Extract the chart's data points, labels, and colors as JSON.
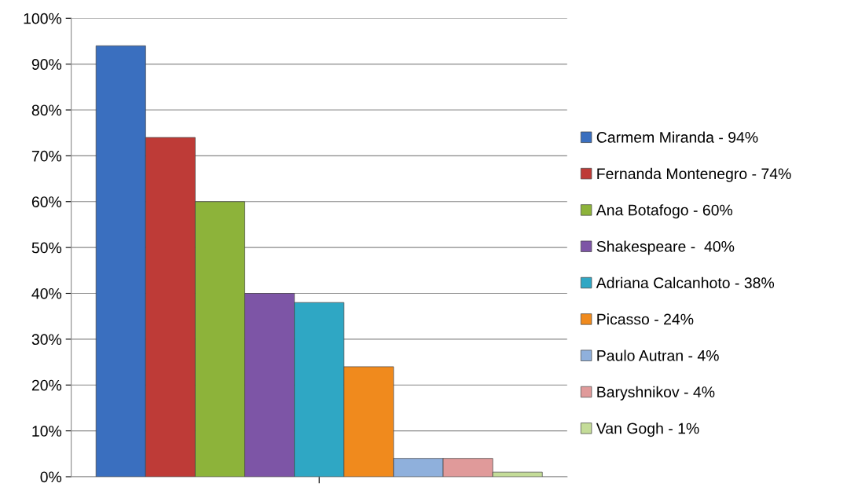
{
  "chart_data": {
    "type": "bar",
    "categories": [
      null
    ],
    "series": [
      {
        "name": "Carmem Miranda - 94%",
        "color": "#3a6fbf",
        "values": [
          94
        ]
      },
      {
        "name": "Fernanda Montenegro - 74%",
        "color": "#be3b37",
        "values": [
          74
        ]
      },
      {
        "name": "Ana Botafogo - 60%",
        "color": "#8db33a",
        "values": [
          60
        ]
      },
      {
        "name": "Shakespeare -  40%",
        "color": "#7d55a6",
        "values": [
          40
        ]
      },
      {
        "name": "Adriana Calcanhoto - 38%",
        "color": "#2fa7c4",
        "values": [
          38
        ]
      },
      {
        "name": "Picasso - 24%",
        "color": "#f08a1d",
        "values": [
          24
        ]
      },
      {
        "name": "Paulo Autran - 4%",
        "color": "#8fb0dc",
        "values": [
          4
        ]
      },
      {
        "name": "Baryshnikov - 4%",
        "color": "#e09a9a",
        "values": [
          4
        ]
      },
      {
        "name": "Van Gogh - 1%",
        "color": "#c4dc98",
        "values": [
          1
        ]
      }
    ],
    "ylim": [
      0,
      100
    ],
    "yticks": [
      {
        "value": 0,
        "label": "0%"
      },
      {
        "value": 10,
        "label": "10%"
      },
      {
        "value": 20,
        "label": "20%"
      },
      {
        "value": 30,
        "label": "30%"
      },
      {
        "value": 40,
        "label": "40%"
      },
      {
        "value": 50,
        "label": "50%"
      },
      {
        "value": 60,
        "label": "60%"
      },
      {
        "value": 70,
        "label": "70%"
      },
      {
        "value": 80,
        "label": "80%"
      },
      {
        "value": 90,
        "label": "90%"
      },
      {
        "value": 100,
        "label": "100%"
      }
    ],
    "grid": "y",
    "legend": "right"
  }
}
